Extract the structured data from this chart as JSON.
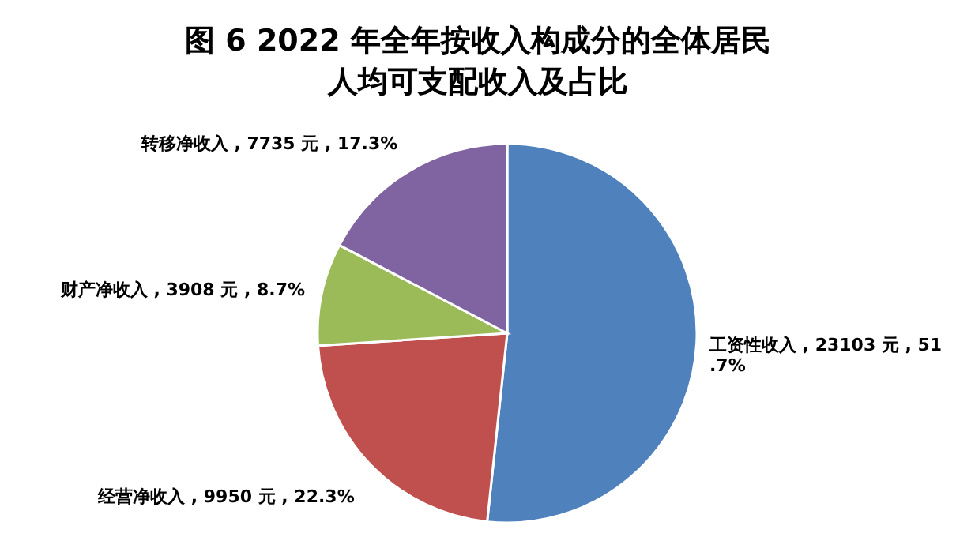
{
  "chart_data": {
    "type": "pie",
    "title": "图 6  2022 年全年按收入构成分的全体居民人均可支配收入及占比",
    "categories": [
      "工资性收入",
      "经营净收入",
      "财产净收入",
      "转移净收入"
    ],
    "values": [
      23103,
      9950,
      3908,
      7735
    ],
    "value_labels": [
      "23103 元 , 51.7%",
      "9950 元 , 22.3%",
      "3908 元 , 8.7%",
      "7735 元 , 17.3%"
    ],
    "colors": [
      "#4f81bd",
      "#c0504d",
      "#9bbb59",
      "#8064a2"
    ]
  }
}
